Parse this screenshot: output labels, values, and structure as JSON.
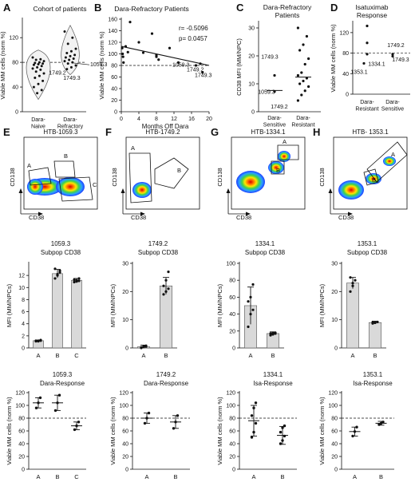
{
  "panel_letters": [
    "A",
    "B",
    "C",
    "D",
    "E",
    "F",
    "G",
    "H"
  ],
  "chart_data": [
    {
      "id": "A",
      "type": "violin-scatter",
      "title": "Cohort of patients",
      "ylabel": "Viable MM cells (norm %)",
      "categories": [
        "Dara-\nNaive",
        "Dara-\nRefractory"
      ],
      "ylim": [
        0,
        150
      ],
      "yticks": [
        0,
        40,
        80,
        120
      ],
      "reference_line": 80,
      "series": [
        {
          "values": [
            88,
            85,
            84,
            82,
            80,
            79,
            78,
            77,
            76,
            74,
            72,
            70,
            68,
            65,
            62,
            58,
            55,
            50,
            45,
            40,
            35,
            30
          ]
        },
        {
          "values": [
            130,
            120,
            110,
            102,
            98,
            95,
            92,
            90,
            88,
            86,
            84,
            82,
            80,
            78,
            75,
            72,
            69
          ]
        }
      ],
      "annotations": [
        {
          "text": "1059.3",
          "x": 1,
          "y": 73
        },
        {
          "text": "1749.2",
          "x": 1,
          "y": 79
        },
        {
          "text": "1749.3",
          "x": 1,
          "y": 70
        }
      ]
    },
    {
      "id": "B",
      "type": "scatter",
      "title": "Dara-Refractory Patients",
      "xlabel": "Months Off Dara",
      "ylabel": "Viable MM cells (norm %)",
      "xlim": [
        0,
        20
      ],
      "ylim": [
        0,
        160
      ],
      "xticks": [
        0,
        4,
        8,
        12,
        16,
        20
      ],
      "yticks": [
        0,
        20,
        40,
        60,
        80,
        100,
        120,
        140,
        160
      ],
      "reference_line": 80,
      "stats": [
        "r= -0.5096",
        "p= 0.0457"
      ],
      "x": [
        0.2,
        0.3,
        0.4,
        0.5,
        1,
        1.5,
        2,
        4,
        5,
        7,
        8,
        8,
        8.5,
        11,
        13,
        17,
        18,
        18.5
      ],
      "y": [
        110,
        100,
        95,
        85,
        113,
        103,
        155,
        120,
        102,
        135,
        98,
        95,
        90,
        110,
        85,
        80,
        83,
        68
      ],
      "trend": [
        [
          0,
          113
        ],
        [
          20,
          80
        ]
      ],
      "annotations": [
        {
          "text": "1059.3",
          "x": 18,
          "y": 80
        },
        {
          "text": "1749.2",
          "x": 19,
          "y": 73
        },
        {
          "text": "1749.3",
          "x": 20,
          "y": 66
        }
      ]
    },
    {
      "id": "C",
      "type": "scatter-category",
      "title": "Dara-Refractory Patients",
      "ylabel": "CD38 MFI (MM/NPC)",
      "categories": [
        "Dara-\nSensitive",
        "Dara-\nResistant"
      ],
      "ylim": [
        0,
        32
      ],
      "yticks": [
        0,
        10,
        20,
        30
      ],
      "means": [
        7.6,
        12.4
      ],
      "series": [
        {
          "values": [
            13,
            7.2
          ]
        },
        {
          "values": [
            30,
            27,
            24,
            22,
            19,
            17,
            14,
            13,
            12,
            11,
            10,
            9,
            7.5,
            6,
            4
          ]
        }
      ],
      "annotations": [
        {
          "text": "1749.3",
          "x": 0,
          "y": 17
        },
        {
          "text": "1059.3",
          "x": 0,
          "y": 4.5
        },
        {
          "text": "1749.2",
          "x": 0,
          "y": 1.5
        }
      ]
    },
    {
      "id": "D",
      "type": "scatter-category",
      "title": "Isatuximab Response",
      "ylabel": "Viable MM cells (norm %)",
      "categories": [
        "Dara-\nResistant",
        "Dara-\nSensitive"
      ],
      "ylim": [
        0,
        140
      ],
      "yticks": [
        0,
        40,
        80,
        120
      ],
      "reference_line": 80,
      "series": [
        {
          "values": [
            133,
            100,
            78,
            60
          ]
        },
        {
          "values": [
            78,
            74
          ]
        }
      ],
      "annotations": [
        {
          "text": "1353.1",
          "x": 0,
          "y": 53
        },
        {
          "text": "1334.1",
          "x": 0,
          "y": 57
        },
        {
          "text": "1749.2",
          "x": 1,
          "y": 92
        },
        {
          "text": "1749.3",
          "x": 1,
          "y": 66
        }
      ]
    },
    {
      "id": "E-flow",
      "type": "flow-density",
      "title": "HTB-1059.3",
      "xlabel": "CD38",
      "ylabel": "CD138",
      "gates": [
        "A",
        "B",
        "C"
      ]
    },
    {
      "id": "F-flow",
      "type": "flow-density",
      "title": "HTB-1749.2",
      "xlabel": "CD38",
      "ylabel": "CD138",
      "gates": [
        "A",
        "B"
      ]
    },
    {
      "id": "G-flow",
      "type": "flow-density",
      "title": "HTB-1334.1",
      "xlabel": "CD38",
      "ylabel": "CD138",
      "gates": [
        "A",
        "B"
      ]
    },
    {
      "id": "H-flow",
      "type": "flow-density",
      "title": "HTB- 1353.1",
      "xlabel": "CD38",
      "ylabel": "CD138",
      "gates": [
        "A",
        "B"
      ]
    },
    {
      "id": "E-mfi",
      "type": "bar",
      "title": "1059.3\nSubpop CD38",
      "ylabel": "MFI (MM/NPCs)",
      "categories": [
        "A",
        "B",
        "C"
      ],
      "values": [
        1.2,
        12.3,
        11.2
      ],
      "ylim": [
        0,
        14
      ],
      "yticks": [
        0,
        2,
        4,
        6,
        8,
        10,
        12
      ],
      "errors": [
        0.1,
        0.7,
        0.3
      ],
      "points": [
        [
          1.1,
          1.2,
          1.3,
          1.2,
          1.1,
          1.2
        ],
        [
          11.5,
          12,
          12.8,
          13.1,
          12.2,
          12.5
        ],
        [
          10.9,
          11.2,
          11.5,
          11.3,
          11,
          11.1
        ]
      ]
    },
    {
      "id": "F-mfi",
      "type": "bar",
      "title": "1749.2\nSubpop CD38",
      "ylabel": "MFI (MM/NPCs)",
      "categories": [
        "A",
        "B"
      ],
      "values": [
        0.4,
        22
      ],
      "ylim": [
        0,
        30
      ],
      "yticks": [
        0,
        10,
        20,
        30
      ],
      "errors": [
        0.6,
        3
      ],
      "points": [
        [
          0,
          0.3,
          0.8,
          0.2,
          0.6,
          0.5
        ],
        [
          19,
          20,
          21,
          22,
          24,
          27
        ]
      ]
    },
    {
      "id": "G-mfi",
      "type": "bar",
      "title": "1334.1\nSubpop CD38",
      "ylabel": "MFI (MM/NPCs)",
      "categories": [
        "A",
        "B"
      ],
      "values": [
        50,
        17
      ],
      "ylim": [
        0,
        100
      ],
      "yticks": [
        0,
        20,
        40,
        60,
        80,
        100
      ],
      "errors": [
        22,
        2
      ],
      "points": [
        [
          25,
          40,
          45,
          55,
          60,
          75
        ],
        [
          15,
          16,
          17,
          17,
          18,
          18
        ]
      ]
    },
    {
      "id": "H-mfi",
      "type": "bar",
      "title": "1353.1\nSubpop CD38",
      "ylabel": "MFI (MM/NPCs)",
      "categories": [
        "A",
        "B"
      ],
      "values": [
        23,
        9
      ],
      "ylim": [
        0,
        30
      ],
      "yticks": [
        0,
        10,
        20,
        30
      ],
      "errors": [
        2,
        0.5
      ],
      "points": [
        [
          20,
          22,
          24,
          25,
          23
        ],
        [
          8.7,
          9,
          9.2,
          9.1,
          8.9
        ]
      ]
    },
    {
      "id": "E-resp",
      "type": "dot-mean",
      "title": "1059.3\nDara-Response",
      "ylabel": "Viable MM cells (norm %)",
      "categories": [
        "A",
        "B",
        "C"
      ],
      "ylim": [
        0,
        120
      ],
      "yticks": [
        0,
        20,
        40,
        60,
        80,
        100,
        120
      ],
      "reference_line": 80,
      "means": [
        104,
        104,
        68
      ],
      "errors": [
        8,
        12,
        6
      ],
      "points": [
        [
          96,
          104,
          112
        ],
        [
          92,
          104,
          116
        ],
        [
          62,
          68,
          74
        ]
      ]
    },
    {
      "id": "F-resp",
      "type": "dot-mean",
      "title": "1749.2\nDara-Response",
      "ylabel": "Viable MM cells (norm %)",
      "categories": [
        "A",
        "B"
      ],
      "ylim": [
        0,
        120
      ],
      "yticks": [
        0,
        20,
        40,
        60,
        80,
        100,
        120
      ],
      "reference_line": 80,
      "means": [
        80,
        74
      ],
      "errors": [
        8,
        10
      ],
      "points": [
        [
          72,
          80,
          88
        ],
        [
          64,
          74,
          84
        ]
      ]
    },
    {
      "id": "G-resp",
      "type": "dot-mean",
      "title": "1334.1\nIsa-Response",
      "ylabel": "Viable MM cells (norm %)",
      "categories": [
        "A",
        "B"
      ],
      "ylim": [
        0,
        120
      ],
      "yticks": [
        0,
        20,
        40,
        60,
        80,
        100,
        120
      ],
      "reference_line": 80,
      "means": [
        76,
        53
      ],
      "errors": [
        24,
        14
      ],
      "points": [
        [
          50,
          58,
          72,
          84,
          96,
          104
        ],
        [
          40,
          45,
          52,
          58,
          65,
          68
        ]
      ]
    },
    {
      "id": "H-resp",
      "type": "dot-mean",
      "title": "1353.1\nIsa-Response",
      "ylabel": "Viable MM cells (norm %)",
      "categories": [
        "A",
        "B"
      ],
      "ylim": [
        0,
        120
      ],
      "yticks": [
        0,
        20,
        40,
        60,
        80,
        100,
        120
      ],
      "reference_line": 80,
      "means": [
        59,
        72
      ],
      "errors": [
        7,
        3
      ],
      "points": [
        [
          52,
          59,
          66
        ],
        [
          70,
          72,
          74
        ]
      ]
    }
  ]
}
